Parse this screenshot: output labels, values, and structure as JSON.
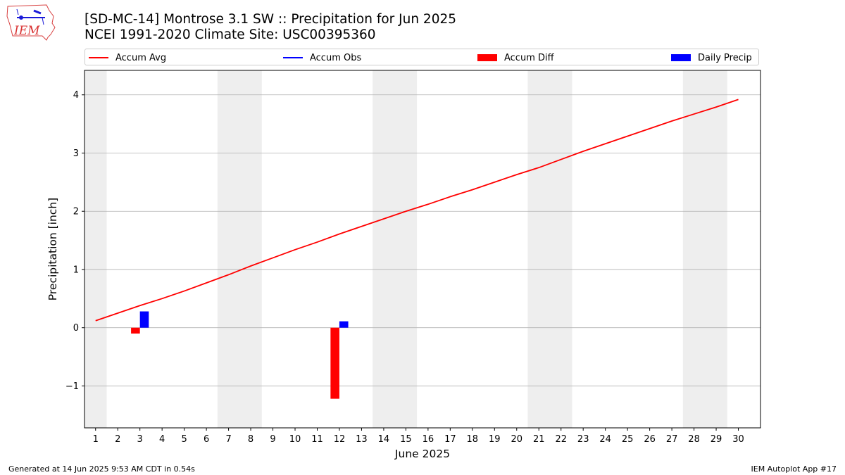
{
  "title": "[SD-MC-14] Montrose 3.1 SW :: Precipitation for Jun 2025",
  "subtitle": "NCEI 1991-2020 Climate Site: USC00395360",
  "logo_text": "IEM",
  "footer": {
    "left": "Generated at 14 Jun 2025 9:53 AM CDT in 0.54s",
    "right": "IEM Autoplot App #17"
  },
  "legend": [
    {
      "label": "Accum Avg",
      "color": "#ff0000",
      "kind": "line"
    },
    {
      "label": "Accum Obs",
      "color": "#0000ff",
      "kind": "line"
    },
    {
      "label": "Accum Diff",
      "color": "#ff0000",
      "kind": "patch"
    },
    {
      "label": "Daily Precip",
      "color": "#0000ff",
      "kind": "patch"
    }
  ],
  "chart_data": {
    "type": "line",
    "xlabel": "June 2025",
    "ylabel": "Precipitation [inch]",
    "xlim": [
      0.5,
      31
    ],
    "ylim": [
      -1.72,
      4.42
    ],
    "x_ticks": [
      1,
      2,
      3,
      4,
      5,
      6,
      7,
      8,
      9,
      10,
      11,
      12,
      13,
      14,
      15,
      16,
      17,
      18,
      19,
      20,
      21,
      22,
      23,
      24,
      25,
      26,
      27,
      28,
      29,
      30
    ],
    "y_ticks": [
      -1,
      0,
      1,
      2,
      3,
      4
    ],
    "y_tick_labels": [
      "−1",
      "0",
      "1",
      "2",
      "3",
      "4"
    ],
    "grid": "horizontal",
    "legend_position": "top",
    "weekend_shading": [
      [
        0.5,
        1.5
      ],
      [
        6.5,
        8.5
      ],
      [
        13.5,
        15.5
      ],
      [
        20.5,
        22.5
      ],
      [
        27.5,
        29.5
      ]
    ],
    "series": [
      {
        "name": "Accum Avg",
        "type": "line",
        "color": "#ff0000",
        "x": [
          1,
          2,
          3,
          4,
          5,
          6,
          7,
          8,
          9,
          10,
          11,
          12,
          13,
          14,
          15,
          16,
          17,
          18,
          19,
          20,
          21,
          22,
          23,
          24,
          25,
          26,
          27,
          28,
          29,
          30
        ],
        "values": [
          0.12,
          0.25,
          0.38,
          0.5,
          0.63,
          0.77,
          0.91,
          1.06,
          1.2,
          1.34,
          1.47,
          1.61,
          1.74,
          1.87,
          2.0,
          2.12,
          2.25,
          2.37,
          2.5,
          2.63,
          2.75,
          2.89,
          3.03,
          3.16,
          3.29,
          3.42,
          3.55,
          3.67,
          3.79,
          3.92
        ]
      },
      {
        "name": "Accum Diff",
        "type": "bar",
        "color": "#ff0000",
        "x": [
          3,
          12
        ],
        "values": [
          -0.1,
          -1.22
        ]
      },
      {
        "name": "Daily Precip",
        "type": "bar",
        "color": "#0000ff",
        "x": [
          3,
          12
        ],
        "values": [
          0.28,
          0.11
        ]
      }
    ]
  }
}
